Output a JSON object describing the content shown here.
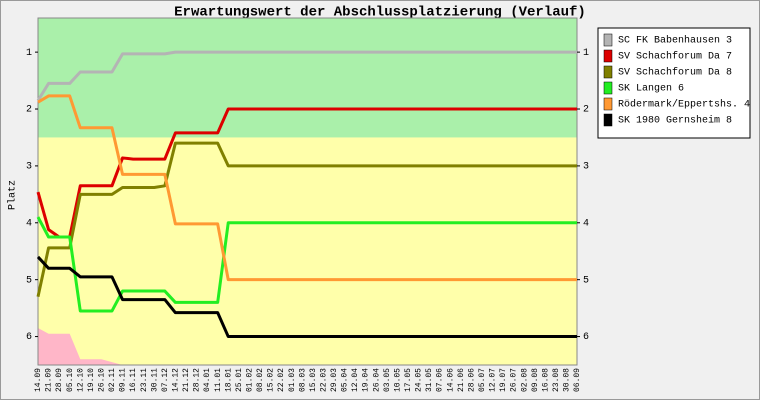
{
  "chart_data": {
    "type": "line",
    "title": "Erwartungswert der Abschlussplatzierung (Verlauf)",
    "y_label": "Platz",
    "categories": [
      "14.09",
      "21.09",
      "28.09",
      "05.10",
      "12.10",
      "19.10",
      "26.10",
      "02.11",
      "09.11",
      "16.11",
      "23.11",
      "30.11",
      "07.12",
      "14.12",
      "21.12",
      "28.12",
      "04.01",
      "11.01",
      "18.01",
      "25.01",
      "01.02",
      "08.02",
      "15.02",
      "22.02",
      "01.03",
      "08.03",
      "15.03",
      "22.03",
      "29.03",
      "05.04",
      "12.04",
      "19.04",
      "26.04",
      "03.05",
      "10.05",
      "17.05",
      "24.05",
      "31.05",
      "07.06",
      "14.06",
      "21.06",
      "28.06",
      "05.07",
      "12.07",
      "19.07",
      "26.07",
      "02.08",
      "09.08",
      "16.08",
      "23.08",
      "30.08",
      "06.09"
    ],
    "ylim": [
      0.4,
      6.5
    ],
    "y_inverted": true,
    "yticks": [
      1,
      2,
      3,
      4,
      5,
      6
    ],
    "bands": [
      {
        "from": 0.4,
        "to": 2.5,
        "color": "#aaf0aa"
      },
      {
        "from": 2.5,
        "to": 6.5,
        "color": "#ffffaa"
      }
    ],
    "area": {
      "color": "#ffb6c8",
      "values": [
        5.85,
        5.95,
        5.95,
        5.95,
        6.4,
        6.4,
        6.4,
        6.45,
        6.5,
        null,
        null,
        null,
        null,
        null,
        null,
        null,
        null,
        null,
        null,
        null,
        null,
        null,
        null,
        null,
        null,
        null,
        null,
        null,
        null,
        null,
        null,
        null,
        null,
        null,
        null,
        null,
        null,
        null,
        null,
        null,
        null,
        null,
        null,
        null,
        null,
        null,
        null,
        null,
        null,
        null,
        null,
        null
      ]
    },
    "series": [
      {
        "name": "SC FK Babenhausen 3",
        "color": "#b4b4b4",
        "values": [
          1.85,
          1.55,
          1.55,
          1.55,
          1.35,
          1.35,
          1.35,
          1.35,
          1.03,
          1.03,
          1.03,
          1.03,
          1.03,
          1,
          1,
          1,
          1,
          1,
          1,
          1,
          1,
          1,
          1,
          1,
          1,
          1,
          1,
          1,
          1,
          1,
          1,
          1,
          1,
          1,
          1,
          1,
          1,
          1,
          1,
          1,
          1,
          1,
          1,
          1,
          1,
          1,
          1,
          1,
          1,
          1,
          1,
          1
        ]
      },
      {
        "name": "SV Schachforum Da 7",
        "color": "#dd0000",
        "values": [
          3.46,
          4.12,
          4.25,
          4.25,
          3.35,
          3.35,
          3.35,
          3.35,
          2.86,
          2.88,
          2.88,
          2.88,
          2.88,
          2.42,
          2.42,
          2.42,
          2.42,
          2.42,
          2,
          2,
          2,
          2,
          2,
          2,
          2,
          2,
          2,
          2,
          2,
          2,
          2,
          2,
          2,
          2,
          2,
          2,
          2,
          2,
          2,
          2,
          2,
          2,
          2,
          2,
          2,
          2,
          2,
          2,
          2,
          2,
          2,
          2
        ]
      },
      {
        "name": "SV Schachforum Da 8",
        "color": "#808000",
        "values": [
          5.3,
          4.44,
          4.44,
          4.44,
          3.5,
          3.5,
          3.5,
          3.5,
          3.38,
          3.38,
          3.38,
          3.38,
          3.35,
          2.6,
          2.6,
          2.6,
          2.6,
          2.6,
          3,
          3,
          3,
          3,
          3,
          3,
          3,
          3,
          3,
          3,
          3,
          3,
          3,
          3,
          3,
          3,
          3,
          3,
          3,
          3,
          3,
          3,
          3,
          3,
          3,
          3,
          3,
          3,
          3,
          3,
          3,
          3,
          3,
          3
        ]
      },
      {
        "name": "SK Langen 6",
        "color": "#22ee22",
        "values": [
          3.9,
          4.25,
          4.25,
          4.25,
          5.55,
          5.55,
          5.55,
          5.55,
          5.2,
          5.2,
          5.2,
          5.2,
          5.2,
          5.4,
          5.4,
          5.4,
          5.4,
          5.4,
          4,
          4,
          4,
          4,
          4,
          4,
          4,
          4,
          4,
          4,
          4,
          4,
          4,
          4,
          4,
          4,
          4,
          4,
          4,
          4,
          4,
          4,
          4,
          4,
          4,
          4,
          4,
          4,
          4,
          4,
          4,
          4,
          4,
          4
        ]
      },
      {
        "name": "Rödermark/Eppertshs. 4",
        "color": "#ff9933",
        "values": [
          1.88,
          1.77,
          1.77,
          1.77,
          2.33,
          2.33,
          2.33,
          2.33,
          3.15,
          3.15,
          3.15,
          3.15,
          3.15,
          4.02,
          4.02,
          4.02,
          4.02,
          4.02,
          5,
          5,
          5,
          5,
          5,
          5,
          5,
          5,
          5,
          5,
          5,
          5,
          5,
          5,
          5,
          5,
          5,
          5,
          5,
          5,
          5,
          5,
          5,
          5,
          5,
          5,
          5,
          5,
          5,
          5,
          5,
          5,
          5,
          5
        ]
      },
      {
        "name": "SK 1980 Gernsheim 8",
        "color": "#000000",
        "values": [
          4.6,
          4.8,
          4.8,
          4.8,
          4.95,
          4.95,
          4.95,
          4.95,
          5.35,
          5.35,
          5.35,
          5.35,
          5.35,
          5.58,
          5.58,
          5.58,
          5.58,
          5.58,
          6,
          6,
          6,
          6,
          6,
          6,
          6,
          6,
          6,
          6,
          6,
          6,
          6,
          6,
          6,
          6,
          6,
          6,
          6,
          6,
          6,
          6,
          6,
          6,
          6,
          6,
          6,
          6,
          6,
          6,
          6,
          6,
          6,
          6
        ]
      }
    ]
  }
}
